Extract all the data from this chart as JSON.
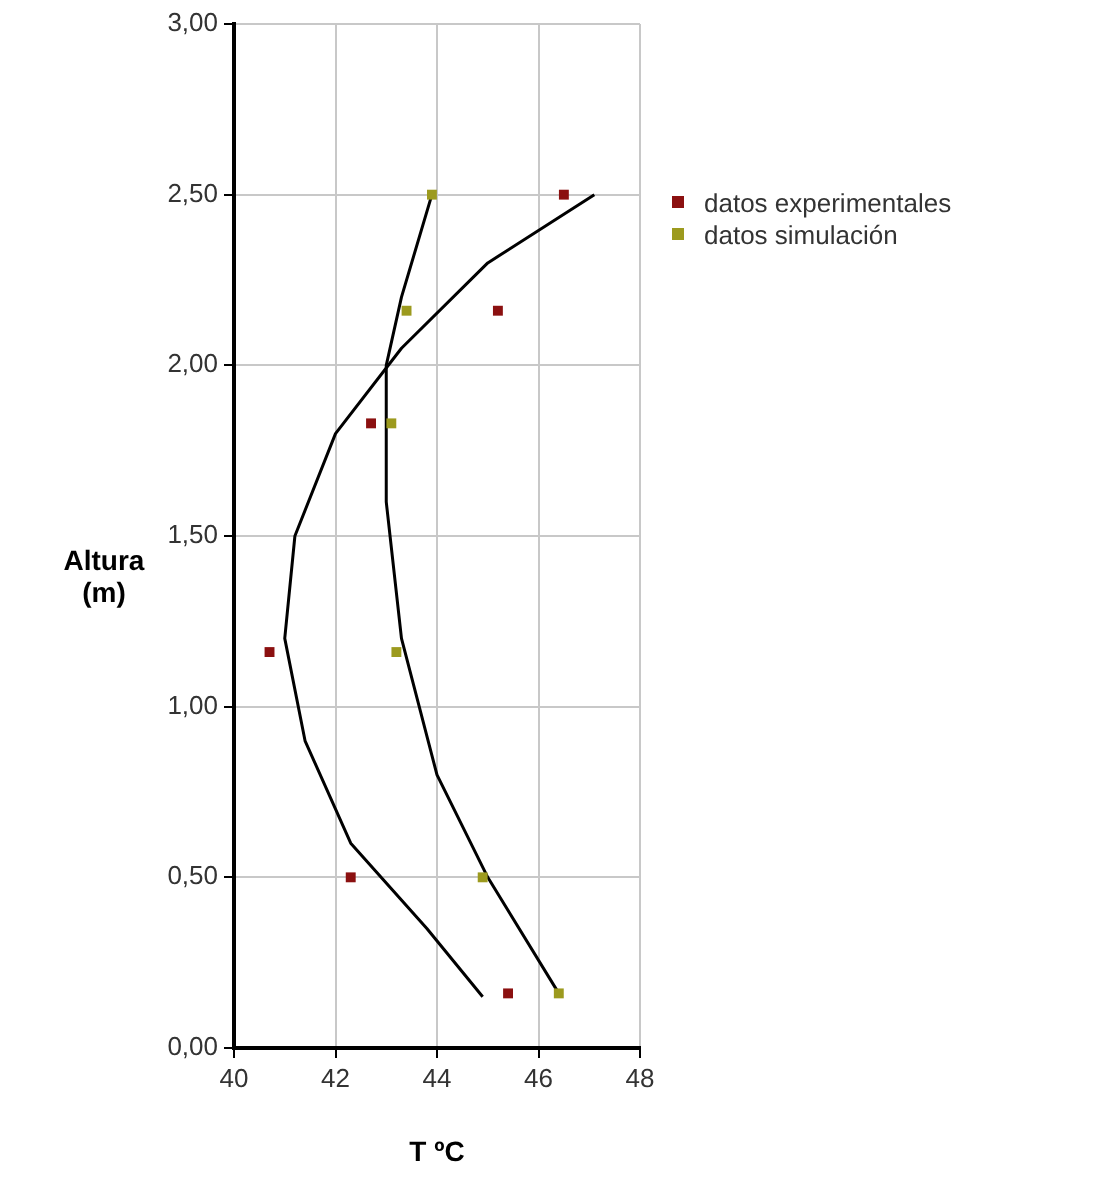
{
  "chart_data": {
    "type": "scatter",
    "xlabel": "T ºC",
    "ylabel": "Altura (m)",
    "xlim": [
      40,
      48
    ],
    "xticks": [
      40,
      42,
      44,
      46,
      48
    ],
    "ylim": [
      0,
      3
    ],
    "yticks": [
      {
        "value": 0,
        "label": "0,00"
      },
      {
        "value": 0.5,
        "label": "0,50"
      },
      {
        "value": 1,
        "label": "1,00"
      },
      {
        "value": 1.5,
        "label": "1,50"
      },
      {
        "value": 2,
        "label": "2,00"
      },
      {
        "value": 2.5,
        "label": "2,50"
      },
      {
        "value": 3,
        "label": "3,00"
      }
    ],
    "grid": true,
    "legend": "top right",
    "marker": "square",
    "series": [
      {
        "name": "datos experimentales",
        "color": "#8b1010",
        "x": [
          46.5,
          45.2,
          42.7,
          40.7,
          42.3,
          45.4
        ],
        "values": [
          2.5,
          2.16,
          1.83,
          1.16,
          0.5,
          0.16
        ]
      },
      {
        "name": "datos simulación",
        "color": "#9c9a1e",
        "x": [
          43.9,
          43.4,
          43.1,
          43.2,
          44.9,
          46.4
        ],
        "values": [
          2.5,
          2.16,
          1.83,
          1.16,
          0.5,
          0.16
        ]
      },
      {
        "type": "line",
        "color": "#000000",
        "marker": "none",
        "x": [
          44.9,
          43.8,
          42.3,
          41.4,
          41.0,
          41.2,
          42.0,
          43.3,
          45.0,
          47.1
        ],
        "values": [
          0.15,
          0.35,
          0.6,
          0.9,
          1.2,
          1.5,
          1.8,
          2.05,
          2.3,
          2.5
        ]
      },
      {
        "type": "line",
        "color": "#000000",
        "marker": "none",
        "x": [
          46.4,
          45.0,
          44.0,
          43.3,
          43.0,
          43.0,
          43.3,
          43.9
        ],
        "values": [
          0.16,
          0.5,
          0.8,
          1.2,
          1.6,
          2.0,
          2.2,
          2.5
        ]
      }
    ]
  }
}
